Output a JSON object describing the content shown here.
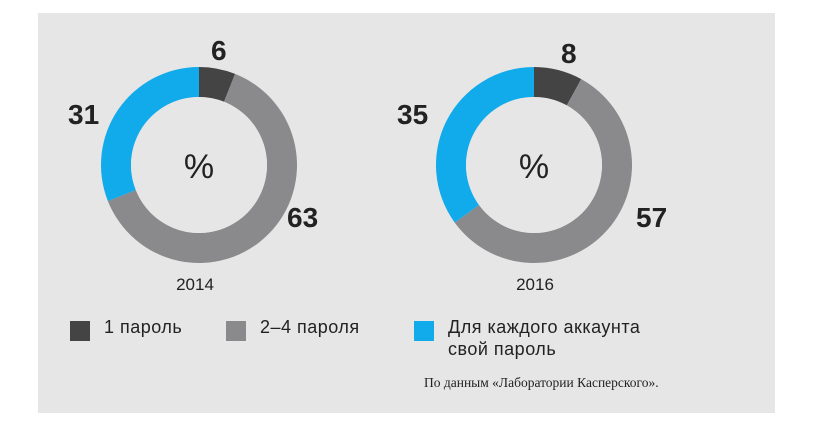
{
  "chart_data": [
    {
      "type": "pie",
      "year_label": "2014",
      "center_label": "%",
      "categories": [
        "1 пароль",
        "2–4 пароля",
        "Для каждого аккаунта свой пароль"
      ],
      "values": [
        6,
        63,
        31
      ]
    },
    {
      "type": "pie",
      "year_label": "2016",
      "center_label": "%",
      "categories": [
        "1 пароль",
        "2–4 пароля",
        "Для каждого аккаунта свой пароль"
      ],
      "values": [
        8,
        57,
        35
      ]
    }
  ],
  "colors": [
    "#444444",
    "#8a8a8c",
    "#11aaeb"
  ],
  "legend": [
    {
      "label_line1": "1 пароль",
      "label_line2": ""
    },
    {
      "label_line1": "2–4 пароля",
      "label_line2": ""
    },
    {
      "label_line1": "Для каждого аккаунта",
      "label_line2": "свой пароль"
    }
  ],
  "source": "По данным «Лаборатории Касперского»."
}
